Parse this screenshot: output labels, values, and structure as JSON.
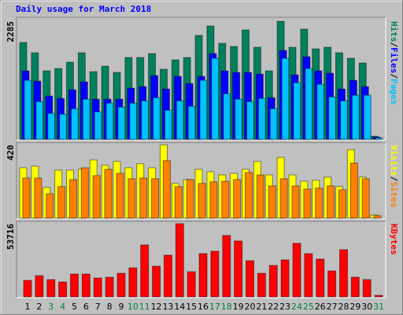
{
  "chart_data": [
    {
      "type": "bar",
      "title": "Daily usage for March 2018",
      "series": [
        {
          "name": "Hits",
          "color": "#00805c",
          "values": [
            1874,
            1676,
            1325,
            1371,
            1493,
            1676,
            1310,
            1417,
            1295,
            1584,
            1584,
            1660,
            1356,
            1538,
            1584,
            2011,
            2193,
            1858,
            1797,
            2117,
            1782,
            1325,
            2285,
            1782,
            2132,
            1752,
            1782,
            1676,
            1569,
            1477,
            61
          ]
        },
        {
          "name": "Files",
          "color": "#0000ff",
          "values": [
            1325,
            1127,
            838,
            792,
            960,
            1112,
            777,
            777,
            777,
            990,
            1021,
            1234,
            975,
            1219,
            1081,
            1219,
            1660,
            1325,
            1295,
            1295,
            1264,
            807,
            1721,
            1249,
            1599,
            1325,
            1280,
            975,
            1142,
            1021,
            46
          ]
        },
        {
          "name": "Pages",
          "color": "#00c0ff",
          "values": [
            1142,
            731,
            503,
            487,
            594,
            777,
            533,
            701,
            624,
            701,
            746,
            807,
            564,
            746,
            640,
            1142,
            1569,
            883,
            777,
            731,
            792,
            594,
            1569,
            1097,
            1371,
            1066,
            822,
            746,
            853,
            853,
            30
          ]
        }
      ],
      "ylim": [
        0,
        2285
      ],
      "yticks": [
        2285
      ],
      "legend_separator": "/"
    },
    {
      "type": "bar",
      "series": [
        {
          "name": "Visits",
          "color": "#ffff00",
          "values": [
            289,
            298,
            176,
            275,
            275,
            280,
            334,
            303,
            325,
            289,
            312,
            289,
            420,
            199,
            221,
            280,
            266,
            248,
            257,
            280,
            325,
            248,
            348,
            248,
            212,
            217,
            235,
            181,
            393,
            235,
            18
          ]
        },
        {
          "name": "Sites",
          "color": "#ff8000",
          "values": [
            230,
            230,
            140,
            181,
            221,
            289,
            244,
            280,
            257,
            226,
            230,
            226,
            330,
            181,
            221,
            199,
            208,
            212,
            221,
            262,
            248,
            185,
            226,
            185,
            167,
            172,
            185,
            163,
            316,
            226,
            14
          ]
        }
      ],
      "ylim": [
        0,
        420
      ],
      "yticks": [
        420
      ],
      "legend_separator": "/"
    },
    {
      "type": "bar",
      "categories": [
        "1",
        "2",
        "3",
        "4",
        "5",
        "6",
        "7",
        "8",
        "9",
        "10",
        "11",
        "12",
        "13",
        "14",
        "15",
        "16",
        "17",
        "18",
        "19",
        "20",
        "21",
        "22",
        "23",
        "24",
        "25",
        "26",
        "27",
        "28",
        "29",
        "30",
        "31"
      ],
      "category_colors": [
        "#000000",
        "#000000",
        "#008040",
        "#008040",
        "#000000",
        "#000000",
        "#000000",
        "#000000",
        "#000000",
        "#008040",
        "#008040",
        "#000000",
        "#000000",
        "#000000",
        "#000000",
        "#000000",
        "#008040",
        "#008040",
        "#000000",
        "#000000",
        "#000000",
        "#000000",
        "#000000",
        "#008040",
        "#008040",
        "#000000",
        "#000000",
        "#000000",
        "#000000",
        "#000000",
        "#008040"
      ],
      "series": [
        {
          "name": "KBytes",
          "color": "#ff0000",
          "values": [
            12130,
            15600,
            12700,
            10970,
            16750,
            16750,
            13860,
            14440,
            17330,
            21370,
            38120,
            22530,
            30610,
            53716,
            18480,
            31770,
            33500,
            45060,
            41010,
            26570,
            17330,
            23100,
            27150,
            39280,
            31770,
            27730,
            19060,
            34660,
            14440,
            12700,
            1155
          ]
        }
      ],
      "ylim": [
        0,
        53716
      ],
      "yticks": [
        53716
      ]
    }
  ]
}
